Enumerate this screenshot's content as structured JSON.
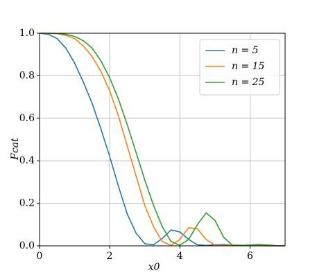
{
  "chart_data": {
    "type": "line",
    "xlabel": "x0",
    "ylabel": "Fcat",
    "x": [
      0,
      0.25,
      0.5,
      0.75,
      1.0,
      1.25,
      1.5,
      1.75,
      2.0,
      2.25,
      2.5,
      2.75,
      3.0,
      3.25,
      3.5,
      3.75,
      4.0,
      4.25,
      4.5,
      4.75,
      5.0,
      5.25,
      5.5,
      5.75,
      6.0,
      6.25,
      6.5,
      6.75,
      7.0
    ],
    "series": [
      {
        "name": "n = 5",
        "color": "#1f77b4",
        "values": [
          1.0,
          0.995,
          0.975,
          0.93,
          0.86,
          0.77,
          0.67,
          0.55,
          0.42,
          0.28,
          0.15,
          0.06,
          0.01,
          0.005,
          0.035,
          0.075,
          0.065,
          0.03,
          0.005,
          0.002,
          0.005,
          0.006,
          0.004,
          0.002,
          0.001,
          0.002,
          0.001,
          0,
          0
        ]
      },
      {
        "name": "n = 15",
        "color": "#ff7f0e",
        "values": [
          1.0,
          0.999,
          0.998,
          0.99,
          0.975,
          0.94,
          0.89,
          0.82,
          0.73,
          0.61,
          0.47,
          0.33,
          0.19,
          0.09,
          0.02,
          0.002,
          0.03,
          0.085,
          0.08,
          0.03,
          0.003,
          0.002,
          0.004,
          0.003,
          0.001,
          0,
          0,
          0,
          0
        ]
      },
      {
        "name": "n = 25",
        "color": "#2ca02c",
        "values": [
          1.0,
          1.0,
          0.999,
          0.995,
          0.985,
          0.965,
          0.93,
          0.87,
          0.79,
          0.69,
          0.57,
          0.44,
          0.31,
          0.19,
          0.09,
          0.02,
          0.003,
          0.03,
          0.1,
          0.155,
          0.12,
          0.04,
          0.003,
          0.002,
          0.004,
          0.006,
          0.004,
          0.001,
          0
        ]
      }
    ],
    "xlim": [
      0,
      7
    ],
    "ylim": [
      0,
      1.0
    ],
    "xticks": [
      0,
      2,
      4,
      6
    ],
    "yticks": [
      {
        "value": 0,
        "label": "0.0"
      },
      {
        "value": 0.2,
        "label": "0.2"
      },
      {
        "value": 0.4,
        "label": "0.4"
      },
      {
        "value": 0.6,
        "label": "0.6"
      },
      {
        "value": 0.8,
        "label": "0.8"
      },
      {
        "value": 1.0,
        "label": "1.0"
      }
    ],
    "grid": true,
    "legend": "upper right"
  }
}
